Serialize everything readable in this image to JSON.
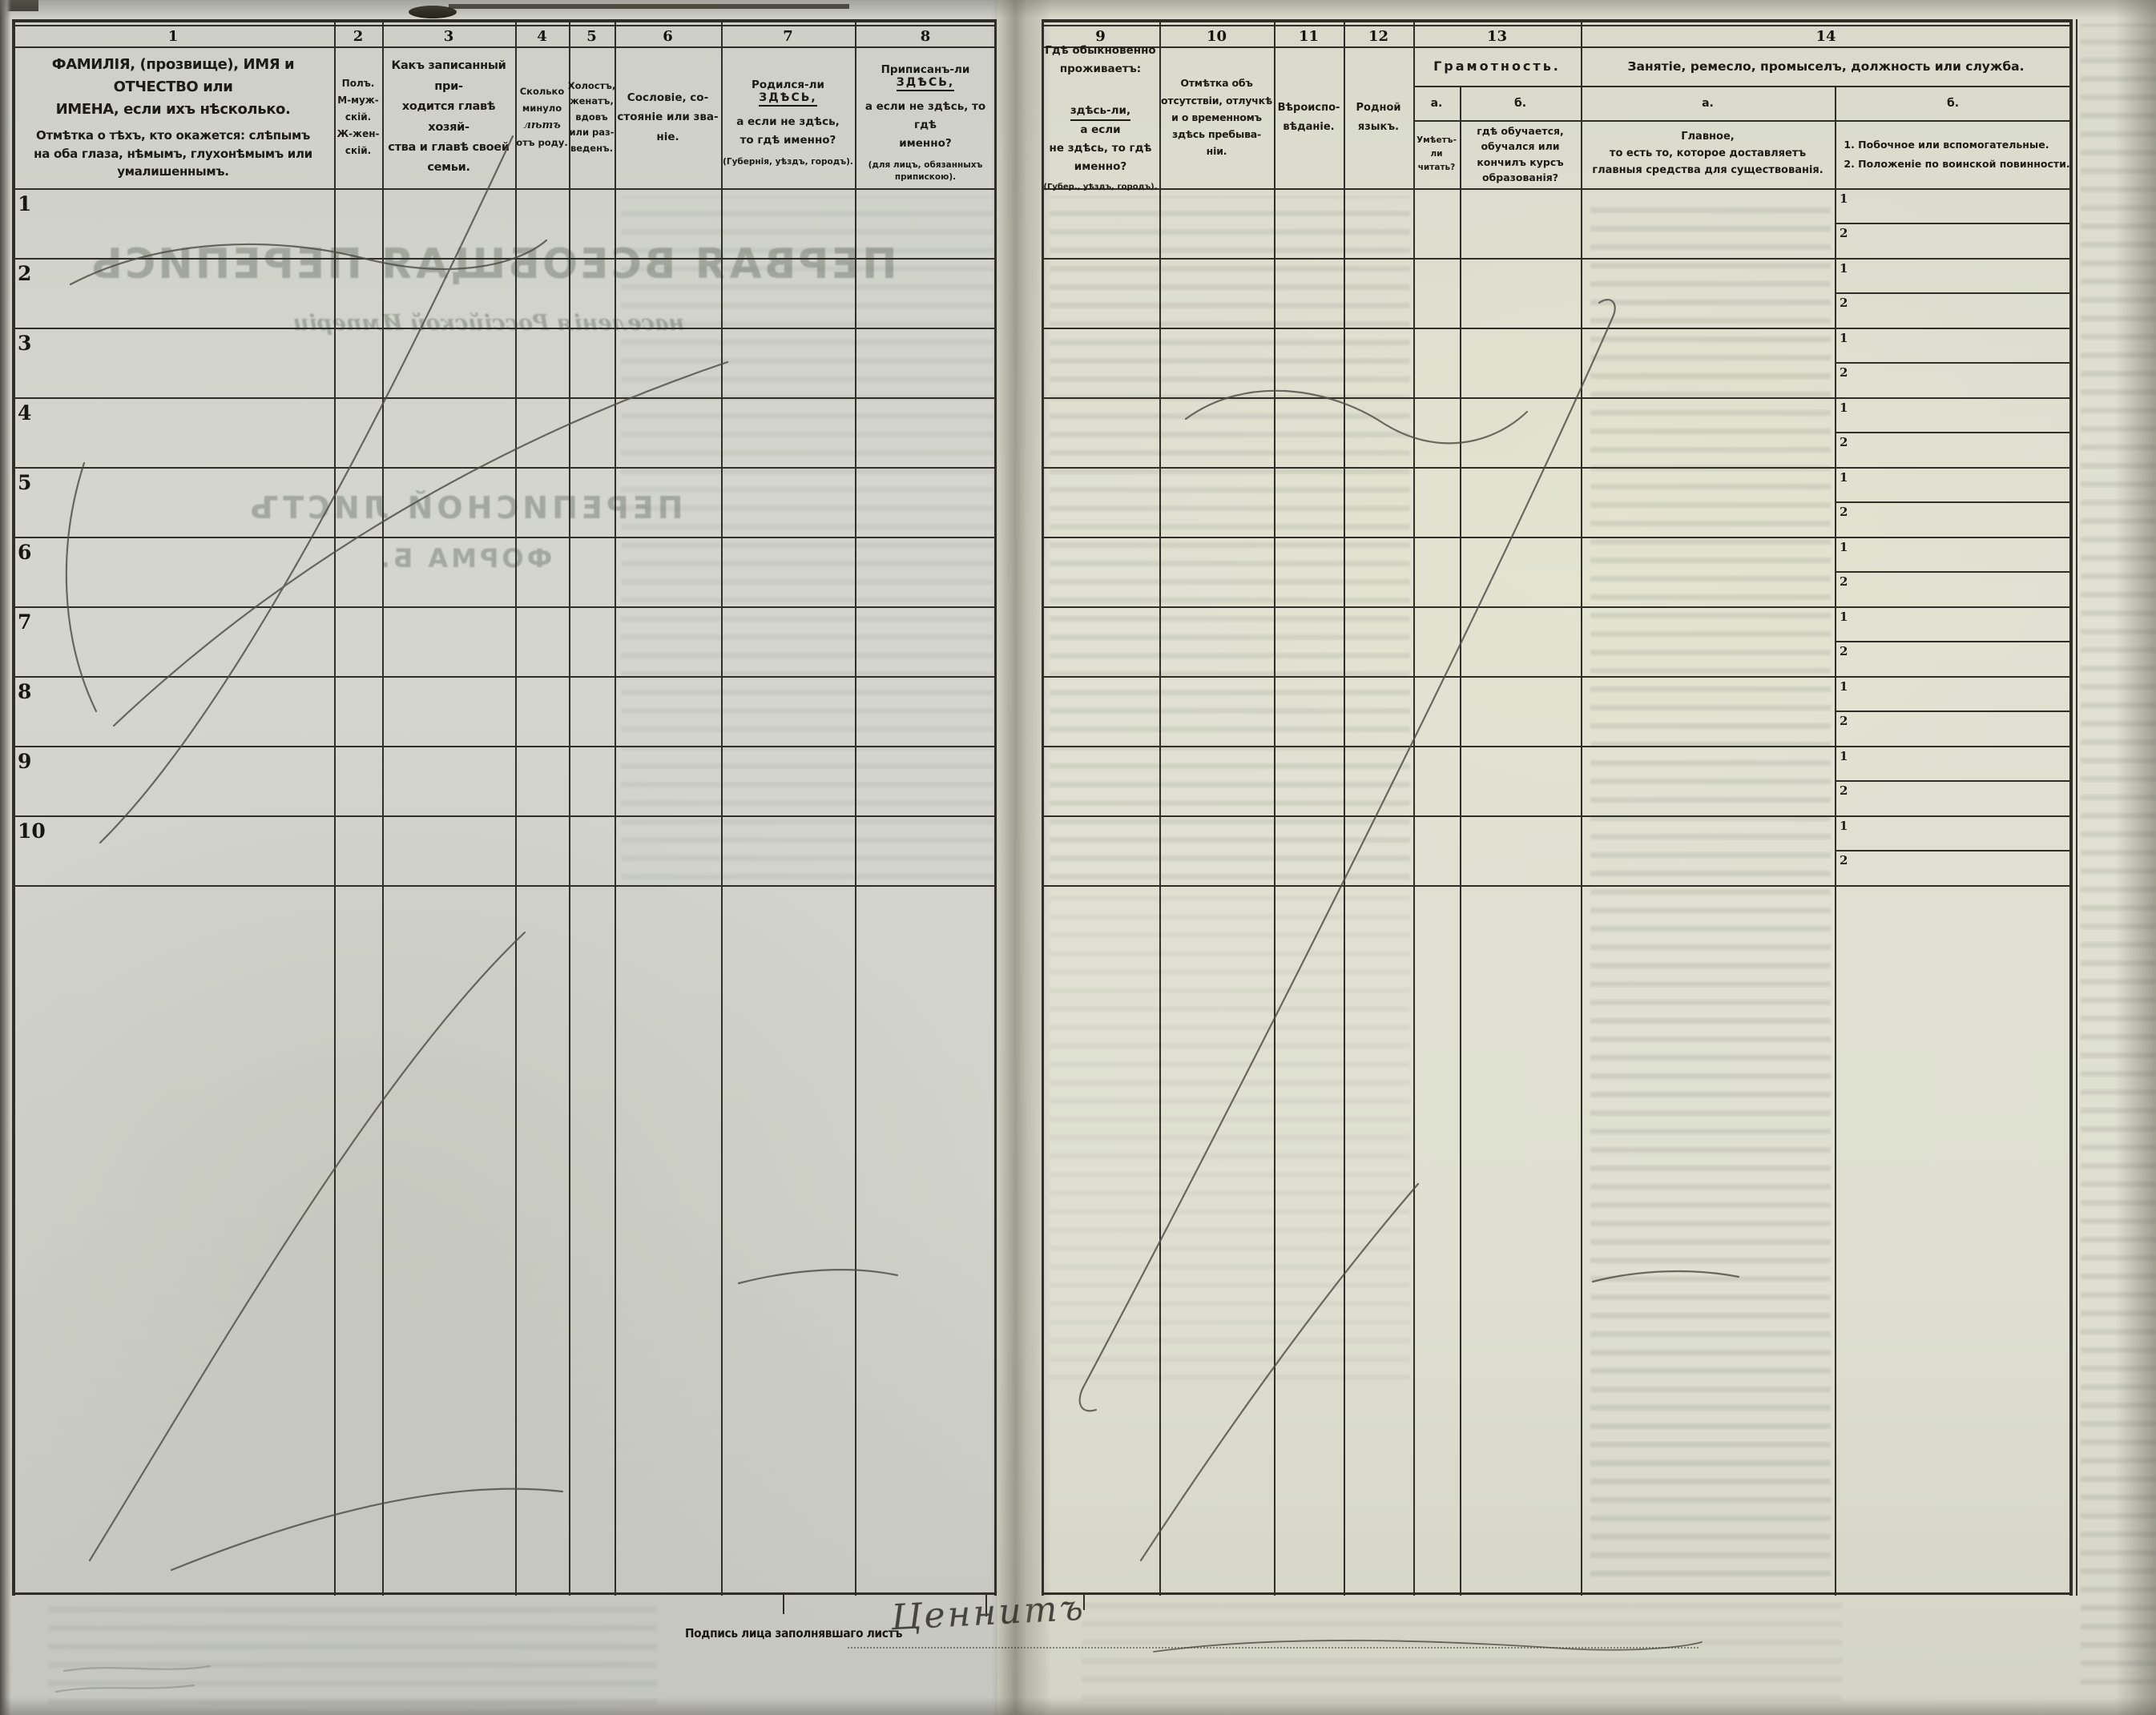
{
  "form": {
    "columns": [
      {
        "num": "1",
        "title": "ФАМИЛІЯ, (прозвище), ИМЯ и ОТЧЕСТВО или\nИМЕНА, если ихъ нѣсколько.",
        "note": "Отмѣтка о тѣхъ, кто окажется: слѣпымъ\nна оба глаза, нѣмымъ, глухонѣмымъ или\nумалишеннымъ."
      },
      {
        "num": "2",
        "title": "Полъ.\nМ-муж-\nскій.\nЖ-жен-\nскій."
      },
      {
        "num": "3",
        "title": "Какъ записанный при-\nходится главѣ хозяй-\nства и главѣ своей\nсемьи."
      },
      {
        "num": "4",
        "a": "Сколько\nминуло",
        "i": "лѣтъ",
        "b": "отъ роду."
      },
      {
        "num": "5",
        "title": "Холостъ,\nженатъ,\nвдовъ\nили раз-\nведенъ."
      },
      {
        "num": "6",
        "title": "Сословіе, со-\nстояніе или зва-\nніе."
      },
      {
        "num": "7",
        "pre": "Родился-ли",
        "emph": "ЗДѢСЬ,",
        "post": "а если не здѣсь,\nто гдѣ именно?",
        "note": "(Губернія, уѣздъ, городъ)."
      },
      {
        "num": "8",
        "pre": "Приписанъ-ли",
        "emph": "ЗДѢСЬ,",
        "post": "а если не здѣсь, то гдѣ\nименно?",
        "note": "(для лицъ, обязанныхъ\nприпискою)."
      },
      {
        "num": "9",
        "line1": "Гдѣ обыкновенно\nпроживаетъ:",
        "emph": "здѣсь-ли,",
        "post": "а если\nне здѣсь, то гдѣ\nименно?",
        "note": "(Губер., уѣздъ, городъ)."
      },
      {
        "num": "10",
        "title": "Отмѣтка объ\nотсутствіи, отлучкѣ\nи о временномъ\nздѣсь пребыва-\nніи."
      },
      {
        "num": "11",
        "title": "Вѣроиспо-\nвѣданіе."
      },
      {
        "num": "12",
        "title": "Родной\nязыкъ."
      },
      {
        "num": "13",
        "title": "Грамотность.",
        "a_label": "а.",
        "b_label": "б.",
        "a_text": "Умѣетъ-\nли\nчитать?",
        "b_text": "гдѣ обучается,\nобучался или\nкончилъ курсъ\nобразованія?"
      },
      {
        "num": "14",
        "title": "Занятіе, ремесло, промыселъ, должность или служба.",
        "a_label": "а.",
        "b_label": "б.",
        "a_text": "Главное,\nто есть то, которое доставляетъ\nглавныя средства для существованія.",
        "b_text": "1. Побочное или вспомогательные.\n2. Положеніе по воинской повинности."
      }
    ],
    "rows": [
      "1",
      "2",
      "3",
      "4",
      "5",
      "6",
      "7",
      "8",
      "9",
      "10"
    ],
    "subrow_labels": [
      "1",
      "2"
    ],
    "footer": {
      "label": "Подпись лица заполнявшаго листъ",
      "signature": "Ценнитъ"
    },
    "bleedthrough": {
      "title": "ПЕРВАЯ ВСЕОБЩАЯ ПЕРЕПИСЬ",
      "subtitle": "населенія Россійской Имперіи",
      "sheet": "ПЕРЕПИСНОЙ ЛИСТЪ",
      "form_label": "ФОРМА Б."
    }
  },
  "colors": {
    "paper_left": "#d3d5cd",
    "paper_right": "#e0e1d3",
    "line_ink": "#2f2e27",
    "print_ink": "#1c1b14",
    "pen_ink": "#4f4d45"
  }
}
